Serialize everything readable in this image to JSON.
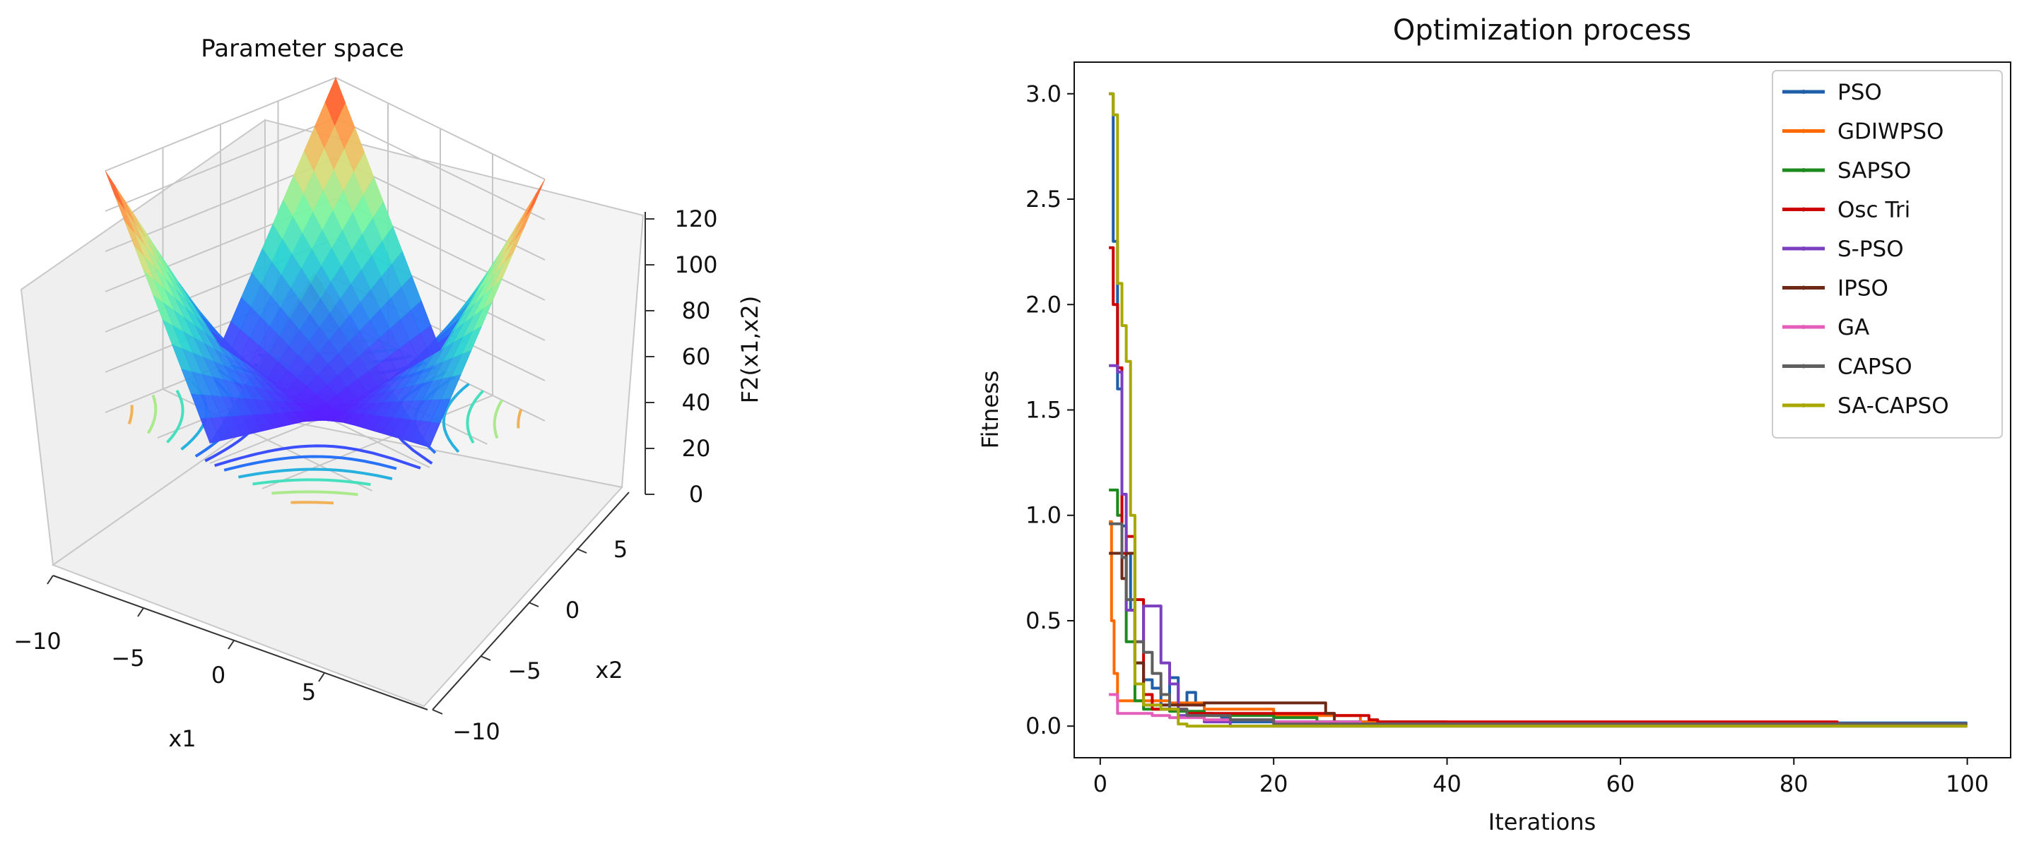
{
  "chart_data": [
    {
      "type": "surface3d",
      "title": "Parameter space",
      "xlabel": "x1",
      "ylabel": "x2",
      "zlabel": "F2(x1,x2)",
      "xlim": [
        -10,
        10
      ],
      "ylim": [
        -10,
        10
      ],
      "zlim": [
        0,
        120
      ],
      "xticks": [
        "−10",
        "−5",
        "0",
        "5"
      ],
      "yticks": [
        "−10",
        "−5",
        "0",
        "5"
      ],
      "zticks": [
        "0",
        "20",
        "40",
        "60",
        "80",
        "100",
        "120"
      ],
      "colormap": "rainbow"
    },
    {
      "type": "line",
      "title": "Optimization process",
      "xlabel": "Iterations",
      "ylabel": "Fitness",
      "xlim": [
        -3,
        105
      ],
      "ylim": [
        -0.15,
        3.15
      ],
      "xticks": [
        "0",
        "20",
        "40",
        "60",
        "80",
        "100"
      ],
      "yticks": [
        "0.0",
        "0.5",
        "1.0",
        "1.5",
        "2.0",
        "2.5",
        "3.0"
      ],
      "legend_position": "top-right",
      "series": [
        {
          "name": "PSO",
          "color": "#1f5fa8",
          "points": [
            [
              1,
              3.0
            ],
            [
              1.5,
              2.3
            ],
            [
              2,
              1.6
            ],
            [
              2.5,
              0.95
            ],
            [
              3,
              0.82
            ],
            [
              3.5,
              0.55
            ],
            [
              4,
              0.3
            ],
            [
              5,
              0.22
            ],
            [
              6,
              0.18
            ],
            [
              7,
              0.1
            ],
            [
              8,
              0.23
            ],
            [
              9,
              0.1
            ],
            [
              10,
              0.16
            ],
            [
              11,
              0.1
            ],
            [
              12,
              0.06
            ],
            [
              13,
              0.05
            ],
            [
              14,
              0.04
            ],
            [
              15,
              0.02
            ],
            [
              20,
              0.02
            ],
            [
              30,
              0.02
            ],
            [
              40,
              0.015
            ],
            [
              60,
              0.015
            ],
            [
              80,
              0.015
            ],
            [
              100,
              0.015
            ]
          ]
        },
        {
          "name": "GDIWPSO",
          "color": "#ff6a00",
          "points": [
            [
              1,
              0.97
            ],
            [
              1.3,
              0.5
            ],
            [
              1.6,
              0.25
            ],
            [
              2,
              0.12
            ],
            [
              5,
              0.12
            ],
            [
              8,
              0.11
            ],
            [
              12,
              0.08
            ],
            [
              20,
              0.05
            ],
            [
              30,
              0.02
            ],
            [
              40,
              0.01
            ],
            [
              100,
              0.01
            ]
          ]
        },
        {
          "name": "SAPSO",
          "color": "#1d8a1d",
          "points": [
            [
              1,
              1.12
            ],
            [
              2,
              1.0
            ],
            [
              2.5,
              0.8
            ],
            [
              3,
              0.4
            ],
            [
              4,
              0.12
            ],
            [
              5,
              0.08
            ],
            [
              8,
              0.07
            ],
            [
              12,
              0.05
            ],
            [
              20,
              0.04
            ],
            [
              25,
              0.02
            ],
            [
              30,
              0.01
            ],
            [
              100,
              0.01
            ]
          ]
        },
        {
          "name": "Osc Tri",
          "color": "#cc0000",
          "points": [
            [
              1,
              2.27
            ],
            [
              1.5,
              2.0
            ],
            [
              2,
              1.7
            ],
            [
              2.5,
              0.82
            ],
            [
              3,
              0.9
            ],
            [
              4,
              0.6
            ],
            [
              5,
              0.15
            ],
            [
              6,
              0.08
            ],
            [
              10,
              0.06
            ],
            [
              20,
              0.06
            ],
            [
              25,
              0.06
            ],
            [
              27,
              0.05
            ],
            [
              31,
              0.03
            ],
            [
              32,
              0.02
            ],
            [
              50,
              0.02
            ],
            [
              84,
              0.02
            ],
            [
              85,
              0.01
            ],
            [
              100,
              0.01
            ]
          ]
        },
        {
          "name": "S-PSO",
          "color": "#7b3fbf",
          "points": [
            [
              1,
              1.71
            ],
            [
              2,
              1.68
            ],
            [
              2.5,
              1.1
            ],
            [
              3,
              0.55
            ],
            [
              4,
              0.4
            ],
            [
              5,
              0.57
            ],
            [
              6,
              0.57
            ],
            [
              7,
              0.3
            ],
            [
              8,
              0.2
            ],
            [
              9,
              0.05
            ],
            [
              12,
              0.02
            ],
            [
              15,
              0.0
            ],
            [
              100,
              0.0
            ]
          ]
        },
        {
          "name": "IPSO",
          "color": "#6e2a17",
          "points": [
            [
              1,
              0.82
            ],
            [
              2,
              0.82
            ],
            [
              2.5,
              0.7
            ],
            [
              3,
              0.82
            ],
            [
              4,
              0.3
            ],
            [
              5,
              0.1
            ],
            [
              8,
              0.1
            ],
            [
              12,
              0.11
            ],
            [
              20,
              0.11
            ],
            [
              25,
              0.11
            ],
            [
              26,
              0.06
            ],
            [
              27,
              0.01
            ],
            [
              100,
              0.01
            ]
          ]
        },
        {
          "name": "GA",
          "color": "#e35dbb",
          "points": [
            [
              1,
              0.15
            ],
            [
              2,
              0.06
            ],
            [
              4,
              0.06
            ],
            [
              6,
              0.05
            ],
            [
              8,
              0.04
            ],
            [
              12,
              0.03
            ],
            [
              20,
              0.02
            ],
            [
              30,
              0.01
            ],
            [
              100,
              0.01
            ]
          ]
        },
        {
          "name": "CAPSO",
          "color": "#5f5f5f",
          "points": [
            [
              1,
              0.96
            ],
            [
              2,
              0.96
            ],
            [
              2.5,
              0.8
            ],
            [
              3,
              0.6
            ],
            [
              4,
              0.4
            ],
            [
              5,
              0.35
            ],
            [
              6,
              0.25
            ],
            [
              7,
              0.15
            ],
            [
              8,
              0.08
            ],
            [
              10,
              0.05
            ],
            [
              15,
              0.03
            ],
            [
              20,
              0.01
            ],
            [
              100,
              0.01
            ]
          ]
        },
        {
          "name": "SA-CAPSO",
          "color": "#a8a800",
          "points": [
            [
              1,
              3.0
            ],
            [
              1.5,
              2.9
            ],
            [
              2,
              2.1
            ],
            [
              2.5,
              1.9
            ],
            [
              3,
              1.73
            ],
            [
              3.5,
              1.0
            ],
            [
              4,
              0.2
            ],
            [
              5,
              0.1
            ],
            [
              6,
              0.1
            ],
            [
              7,
              0.08
            ],
            [
              8,
              0.08
            ],
            [
              9,
              0.01
            ],
            [
              10,
              0.0
            ],
            [
              100,
              0.0
            ]
          ]
        }
      ]
    }
  ]
}
